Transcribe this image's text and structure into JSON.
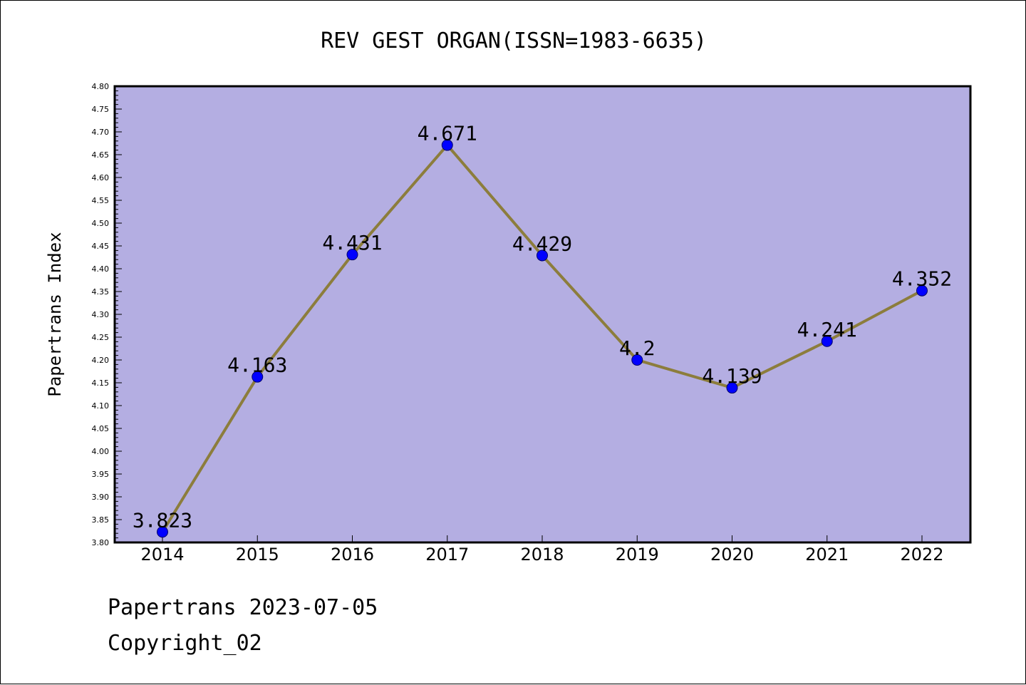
{
  "footer": {
    "line1": "Papertrans 2023-07-05",
    "line2": "Copyright_02"
  },
  "colors": {
    "plot_background": "#b4aee2",
    "line": "#8c7d3c",
    "marker": "#0000ff",
    "frame": "#000000"
  },
  "chart_data": {
    "type": "line",
    "title": "REV GEST ORGAN(ISSN=1983-6635)",
    "xlabel": "",
    "ylabel": "Papertrans Index",
    "categories": [
      "2014",
      "2015",
      "2016",
      "2017",
      "2018",
      "2019",
      "2020",
      "2021",
      "2022"
    ],
    "series": [
      {
        "values": [
          3.823,
          4.163,
          4.431,
          4.671,
          4.429,
          4.2,
          4.139,
          4.241,
          4.352
        ],
        "labels": [
          "3.823",
          "4.163",
          "4.431",
          "4.671",
          "4.429",
          "4.2",
          "4.139",
          "4.241",
          "4.352"
        ]
      }
    ],
    "ylim": [
      3.8,
      4.8
    ],
    "yticks": [
      "3.80",
      "3.85",
      "3.90",
      "3.95",
      "4.00",
      "4.05",
      "4.10",
      "4.15",
      "4.20",
      "4.25",
      "4.30",
      "4.35",
      "4.40",
      "4.45",
      "4.50",
      "4.55",
      "4.60",
      "4.65",
      "4.70",
      "4.75",
      "4.80"
    ],
    "grid": false,
    "legend": "none"
  }
}
